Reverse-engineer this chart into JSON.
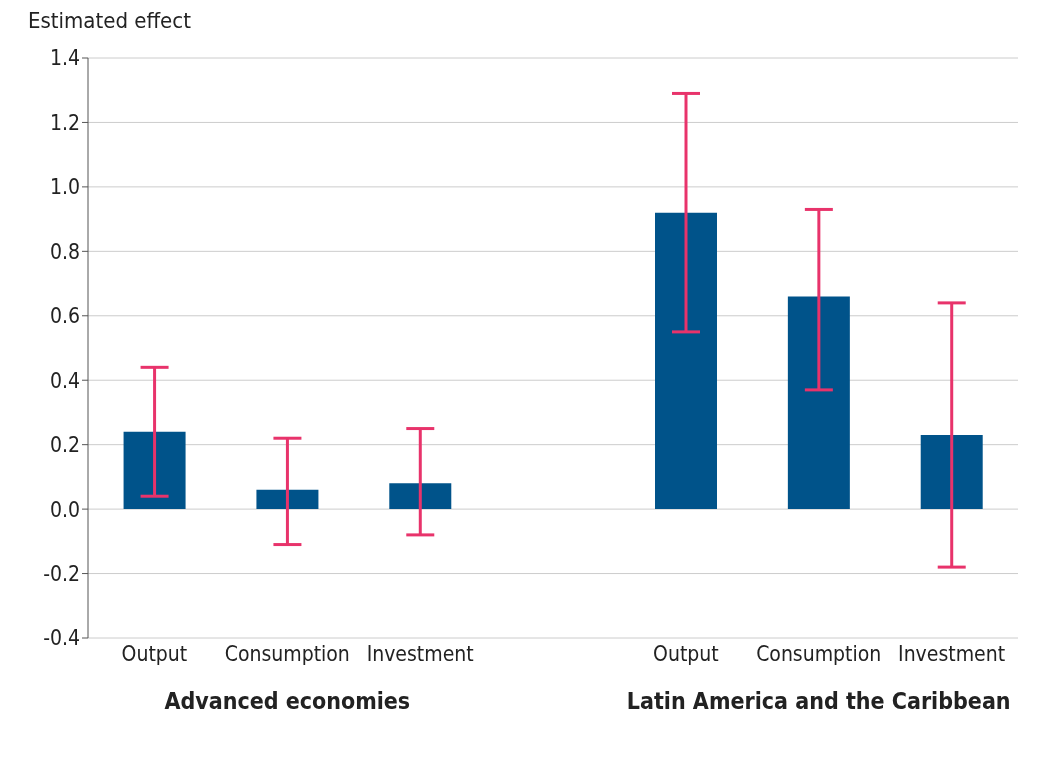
{
  "chart_data": {
    "type": "bar",
    "ylabel": "Estimated effect",
    "categories": [
      "Output",
      "Consumption",
      "Investment",
      null,
      "Output",
      "Consumption",
      "Investment"
    ],
    "values": [
      0.24,
      0.06,
      0.08,
      null,
      0.92,
      0.66,
      0.23
    ],
    "errors": [
      [
        0.04,
        0.44
      ],
      [
        -0.11,
        0.22
      ],
      [
        -0.08,
        0.25
      ],
      null,
      [
        0.55,
        1.29
      ],
      [
        0.37,
        0.93
      ],
      [
        -0.18,
        0.64
      ]
    ],
    "color": "#00538a",
    "ylim": [
      -0.4,
      1.4
    ],
    "yticks": [
      {
        "value": -0.4,
        "label": "-0.4"
      },
      {
        "value": -0.2,
        "label": "-0.2"
      },
      {
        "value": 0,
        "label": "0.0"
      },
      {
        "value": 0.2,
        "label": "0.2"
      },
      {
        "value": 0.4,
        "label": "0.4"
      },
      {
        "value": 0.6,
        "label": "0.6"
      },
      {
        "value": 0.8,
        "label": "0.8"
      },
      {
        "value": 1,
        "label": "1.0"
      },
      {
        "value": 1.2,
        "label": "1.2"
      },
      {
        "value": 1.4,
        "label": "1.4"
      }
    ],
    "grid": "y",
    "annotations": [
      "Advanced economies",
      "Latin America and the Caribbean"
    ]
  }
}
